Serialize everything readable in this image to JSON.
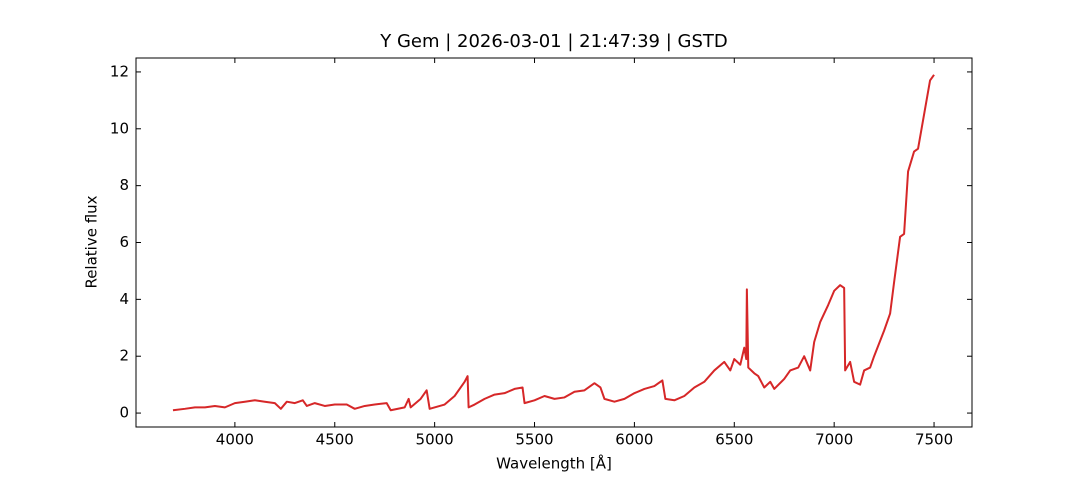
{
  "chart_data": {
    "type": "line",
    "title": "Y Gem | 2026-03-01 | 21:47:39 | GSTD",
    "x_label": "Wavelength [Å]",
    "y_label": "Relative flux",
    "x": [
      3690,
      3750,
      3800,
      3850,
      3900,
      3950,
      4000,
      4050,
      4100,
      4150,
      4200,
      4230,
      4260,
      4300,
      4340,
      4360,
      4400,
      4450,
      4500,
      4560,
      4600,
      4650,
      4700,
      4760,
      4780,
      4850,
      4870,
      4880,
      4930,
      4960,
      4975,
      5050,
      5100,
      5150,
      5165,
      5170,
      5200,
      5250,
      5300,
      5350,
      5400,
      5440,
      5450,
      5500,
      5550,
      5600,
      5650,
      5700,
      5750,
      5800,
      5830,
      5850,
      5900,
      5950,
      6000,
      6050,
      6100,
      6140,
      6155,
      6200,
      6250,
      6300,
      6350,
      6400,
      6450,
      6480,
      6500,
      6530,
      6550,
      6560,
      6563,
      6570,
      6600,
      6620,
      6650,
      6680,
      6700,
      6750,
      6780,
      6820,
      6850,
      6880,
      6900,
      6930,
      6970,
      7000,
      7030,
      7050,
      7055,
      7080,
      7100,
      7130,
      7150,
      7180,
      7200,
      7250,
      7280,
      7300,
      7330,
      7350,
      7370,
      7400,
      7420,
      7450,
      7480,
      7500
    ],
    "series": [
      {
        "color": "#d62728",
        "values": [
          0.1,
          0.15,
          0.2,
          0.2,
          0.25,
          0.2,
          0.35,
          0.4,
          0.45,
          0.4,
          0.35,
          0.15,
          0.4,
          0.35,
          0.45,
          0.25,
          0.35,
          0.25,
          0.3,
          0.3,
          0.15,
          0.25,
          0.3,
          0.35,
          0.1,
          0.2,
          0.5,
          0.2,
          0.5,
          0.8,
          0.15,
          0.3,
          0.6,
          1.1,
          1.3,
          0.2,
          0.3,
          0.5,
          0.65,
          0.7,
          0.85,
          0.9,
          0.35,
          0.45,
          0.6,
          0.5,
          0.55,
          0.75,
          0.8,
          1.05,
          0.9,
          0.5,
          0.4,
          0.5,
          0.7,
          0.85,
          0.95,
          1.15,
          0.5,
          0.45,
          0.6,
          0.9,
          1.1,
          1.5,
          1.8,
          1.5,
          1.9,
          1.7,
          2.3,
          1.9,
          4.35,
          1.6,
          1.4,
          1.3,
          0.9,
          1.1,
          0.85,
          1.2,
          1.5,
          1.6,
          2.0,
          1.5,
          2.5,
          3.2,
          3.8,
          4.3,
          4.5,
          4.4,
          1.5,
          1.8,
          1.1,
          1.0,
          1.5,
          1.6,
          2.0,
          2.9,
          3.5,
          4.6,
          6.2,
          6.3,
          8.5,
          9.2,
          9.3,
          10.5,
          11.7,
          11.9
        ]
      }
    ],
    "xlim": [
      3505,
      7690
    ],
    "ylim": [
      -0.49,
      12.49
    ],
    "xticks": [
      4000,
      4500,
      5000,
      5500,
      6000,
      6500,
      7000,
      7500
    ],
    "yticks": [
      0,
      2,
      4,
      6,
      8,
      10,
      12
    ]
  }
}
